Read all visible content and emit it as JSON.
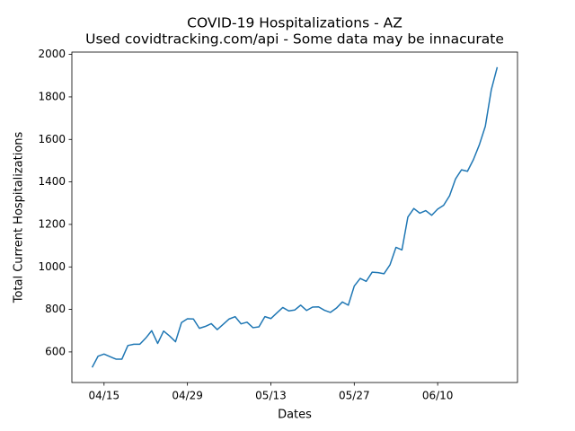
{
  "chart_data": {
    "type": "line",
    "title": "COVID-19 Hospitalizations - AZ",
    "subtitle": "Used covidtracking.com/api - Some data may be innacurate",
    "x_label": "Dates",
    "y_label": "Total Current Hospitalizations",
    "categories": [
      "04/13",
      "04/14",
      "04/15",
      "04/16",
      "04/17",
      "04/18",
      "04/19",
      "04/20",
      "04/21",
      "04/22",
      "04/23",
      "04/24",
      "04/25",
      "04/26",
      "04/27",
      "04/28",
      "04/29",
      "04/30",
      "05/01",
      "05/02",
      "05/03",
      "05/04",
      "05/05",
      "05/06",
      "05/07",
      "05/08",
      "05/09",
      "05/10",
      "05/11",
      "05/12",
      "05/13",
      "05/14",
      "05/15",
      "05/16",
      "05/17",
      "05/18",
      "05/19",
      "05/20",
      "05/21",
      "05/22",
      "05/23",
      "05/24",
      "05/25",
      "05/26",
      "05/27",
      "05/28",
      "05/29",
      "05/30",
      "05/31",
      "06/01",
      "06/02",
      "06/03",
      "06/04",
      "06/05",
      "06/06",
      "06/07",
      "06/08",
      "06/09",
      "06/10",
      "06/11",
      "06/12",
      "06/13",
      "06/14",
      "06/15",
      "06/16",
      "06/17",
      "06/18",
      "06/19",
      "06/20"
    ],
    "values": [
      527,
      580,
      590,
      578,
      566,
      566,
      630,
      636,
      636,
      665,
      700,
      640,
      698,
      675,
      648,
      738,
      756,
      755,
      711,
      720,
      733,
      705,
      730,
      755,
      766,
      732,
      740,
      714,
      718,
      766,
      757,
      783,
      809,
      793,
      797,
      820,
      795,
      811,
      812,
      796,
      786,
      806,
      835,
      820,
      910,
      946,
      932,
      975,
      973,
      968,
      1010,
      1092,
      1080,
      1235,
      1275,
      1253,
      1265,
      1243,
      1272,
      1290,
      1335,
      1414,
      1457,
      1450,
      1505,
      1575,
      1662,
      1833,
      1940
    ],
    "color": "#1f77b4",
    "xticks": [
      "04/15",
      "04/29",
      "05/13",
      "05/27",
      "06/10"
    ],
    "ylim": [
      456,
      2011
    ],
    "yticks": [
      600,
      800,
      1000,
      1200,
      1400,
      1600,
      1800,
      2000
    ]
  }
}
